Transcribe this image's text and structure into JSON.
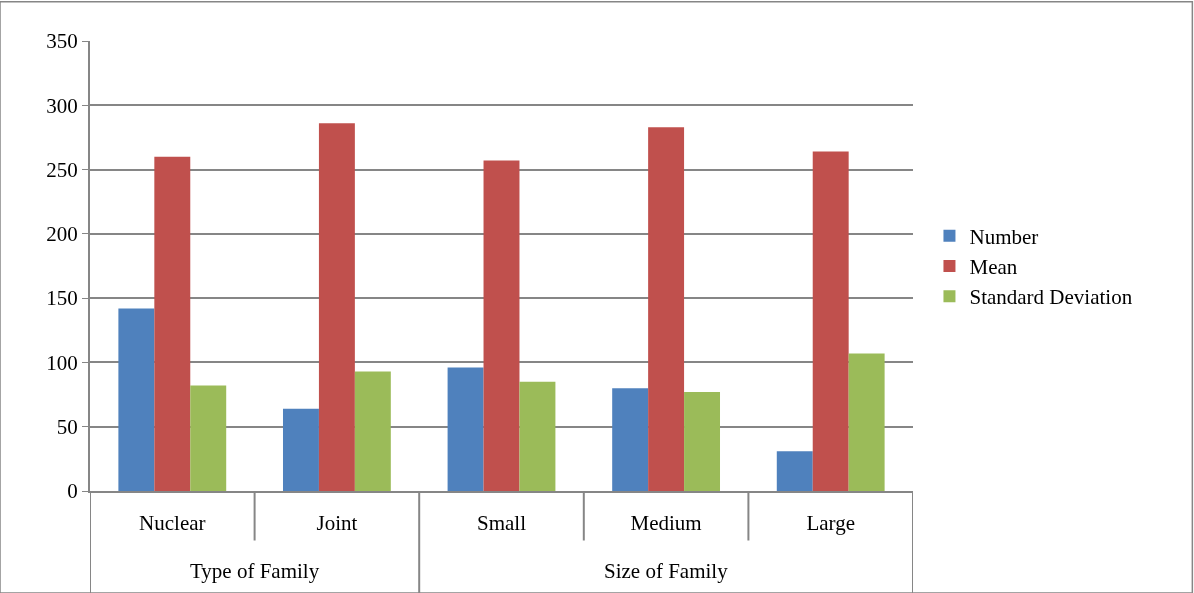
{
  "chart_data": {
    "type": "bar",
    "categories": [
      "Nuclear",
      "Joint",
      "Small",
      "Medium",
      "Large"
    ],
    "series": [
      {
        "name": "Number",
        "color": "#4f81bd",
        "values": [
          142,
          64,
          96,
          80,
          31
        ]
      },
      {
        "name": "Mean",
        "color": "#c0504d",
        "values": [
          260,
          286,
          257,
          283,
          264
        ]
      },
      {
        "name": "Standard Deviation",
        "color": "#9bbb59",
        "values": [
          82,
          93,
          85,
          77,
          107
        ]
      }
    ],
    "ylim": [
      0,
      350
    ],
    "yticks": [
      0,
      50,
      100,
      150,
      200,
      250,
      300,
      350
    ],
    "grid": "y",
    "legend": "right",
    "annotations": [
      "Type of Family",
      "Size of Family"
    ]
  }
}
